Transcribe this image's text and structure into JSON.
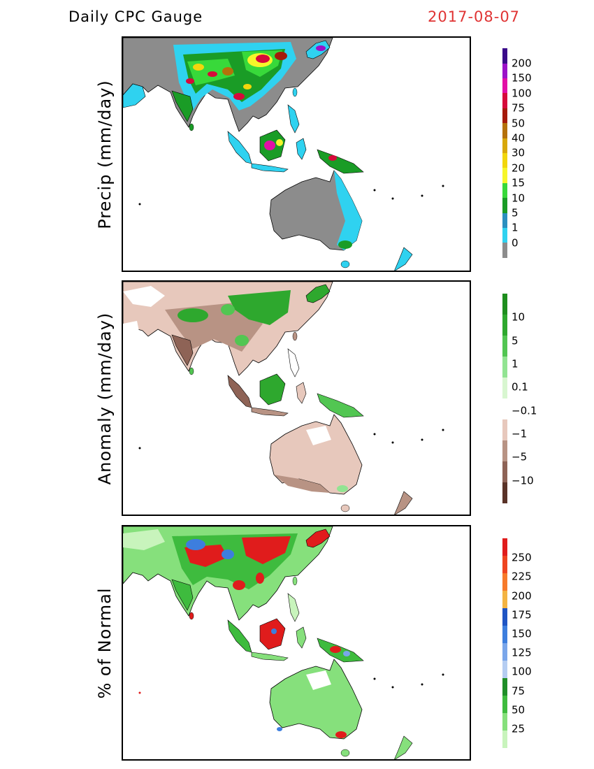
{
  "header": {
    "title": "Daily CPC Gauge",
    "date": "2017-08-07"
  },
  "panels": [
    {
      "ylabel": "Precip (mm/day)",
      "colorbar": [
        {
          "label": "200",
          "color": "#3a0a8a"
        },
        {
          "label": "150",
          "color": "#9b12c8"
        },
        {
          "label": "100",
          "color": "#e20fa6"
        },
        {
          "label": "75",
          "color": "#d60a3a"
        },
        {
          "label": "50",
          "color": "#a51a0a"
        },
        {
          "label": "40",
          "color": "#b5710b"
        },
        {
          "label": "30",
          "color": "#d8a80a"
        },
        {
          "label": "20",
          "color": "#f2d60c"
        },
        {
          "label": "15",
          "color": "#f6f62a"
        },
        {
          "label": "10",
          "color": "#38d93a"
        },
        {
          "label": "5",
          "color": "#1a9c26"
        },
        {
          "label": "1",
          "color": "#2b8fbf"
        },
        {
          "label": "0",
          "color": "#2fd2f0"
        },
        {
          "label": "",
          "color": "#8c8c8c"
        }
      ]
    },
    {
      "ylabel": "Anomaly (mm/day)",
      "colorbar": [
        {
          "label": "",
          "color": "#1e8e1e"
        },
        {
          "label": "10",
          "color": "#2ea82e"
        },
        {
          "label": "5",
          "color": "#52c652"
        },
        {
          "label": "1",
          "color": "#92e492"
        },
        {
          "label": "0.1",
          "color": "#d8f6d0"
        },
        {
          "label": "−0.1",
          "color": "#ffffff"
        },
        {
          "label": "−1",
          "color": "#e7c8bc"
        },
        {
          "label": "−5",
          "color": "#b89384"
        },
        {
          "label": "−10",
          "color": "#8e6356"
        },
        {
          "label": "",
          "color": "#5a3328"
        }
      ]
    },
    {
      "ylabel": "% of Normal",
      "colorbar": [
        {
          "label": "",
          "color": "#e01c1c"
        },
        {
          "label": "250",
          "color": "#ee4420"
        },
        {
          "label": "225",
          "color": "#f77a2a"
        },
        {
          "label": "200",
          "color": "#f4b442"
        },
        {
          "label": "175",
          "color": "#1f55c4"
        },
        {
          "label": "150",
          "color": "#3d7ede"
        },
        {
          "label": "125",
          "color": "#7aa6ea"
        },
        {
          "label": "100",
          "color": "#b5cdf2"
        },
        {
          "label": "75",
          "color": "#1f8e28"
        },
        {
          "label": "50",
          "color": "#3ebb3e"
        },
        {
          "label": "25",
          "color": "#86e07c"
        },
        {
          "label": "",
          "color": "#c8f4bc"
        }
      ]
    }
  ]
}
